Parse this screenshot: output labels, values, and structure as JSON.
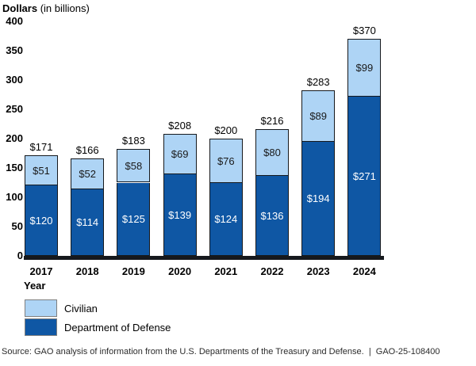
{
  "title": {
    "bold": "Dollars",
    "rest": "(in billions)"
  },
  "axis": {
    "x_title": "Year"
  },
  "legend": {
    "items": [
      {
        "label": "Civilian",
        "color": "#AED4F5"
      },
      {
        "label": "Department of Defense",
        "color": "#0F57A4"
      }
    ]
  },
  "source_line": "Source: GAO analysis of information from the U.S. Departments of the Treasury and Defense.  |  GAO-25-108400",
  "chart_data": {
    "type": "bar",
    "stacked": true,
    "title": "Dollars (in billions)",
    "xlabel": "Year",
    "ylabel": "Dollars (in billions)",
    "ylim": [
      0,
      400
    ],
    "yticks": [
      0,
      50,
      100,
      150,
      200,
      250,
      300,
      350,
      400
    ],
    "grid": false,
    "legend_position": "below-left",
    "categories": [
      "2017",
      "2018",
      "2019",
      "2020",
      "2021",
      "2022",
      "2023",
      "2024"
    ],
    "series": [
      {
        "name": "Civilian",
        "color": "#AED4F5",
        "values": [
          51,
          52,
          58,
          69,
          76,
          80,
          89,
          99
        ],
        "value_labels": [
          "$51",
          "$52",
          "$58",
          "$69",
          "$76",
          "$80",
          "$89",
          "$99"
        ]
      },
      {
        "name": "Department of Defense",
        "color": "#0F57A4",
        "values": [
          120,
          114,
          125,
          139,
          124,
          136,
          194,
          271
        ],
        "value_labels": [
          "$120",
          "$114",
          "$125",
          "$139",
          "$124",
          "$136",
          "$194",
          "$271"
        ]
      }
    ],
    "totals": [
      171,
      166,
      183,
      208,
      200,
      216,
      283,
      370
    ],
    "total_labels": [
      "$171",
      "$166",
      "$183",
      "$208",
      "$200",
      "$216",
      "$283",
      "$370"
    ]
  }
}
